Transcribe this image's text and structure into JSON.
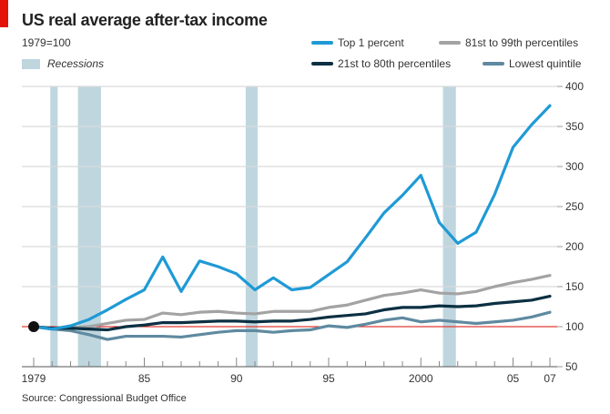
{
  "chart_data": {
    "type": "line",
    "title": "US real average after-tax income",
    "subtitle": "1979=100",
    "source": "Source: Congressional Budget Office",
    "x": [
      1979,
      1980,
      1981,
      1982,
      1983,
      1984,
      1985,
      1986,
      1987,
      1988,
      1989,
      1990,
      1991,
      1992,
      1993,
      1994,
      1995,
      1996,
      1997,
      1998,
      1999,
      2000,
      2001,
      2002,
      2003,
      2004,
      2005,
      2006,
      2007
    ],
    "xlim": [
      1979,
      2007
    ],
    "ylim": [
      50,
      400
    ],
    "x_ticks": [
      {
        "value": 1979,
        "label": "1979"
      },
      {
        "value": 1985,
        "label": "85"
      },
      {
        "value": 1990,
        "label": "90"
      },
      {
        "value": 1995,
        "label": "95"
      },
      {
        "value": 2000,
        "label": "2000"
      },
      {
        "value": 2005,
        "label": "05"
      },
      {
        "value": 2007,
        "label": "07"
      }
    ],
    "y_ticks": [
      50,
      100,
      150,
      200,
      250,
      300,
      350,
      400
    ],
    "y_axis_side": "right",
    "grid": true,
    "baseline": {
      "value": 100,
      "color": "#e3120b"
    },
    "legend_position": "top-right",
    "recessions_label": "Recessions",
    "recessions": [
      [
        1979.9,
        1980.3
      ],
      [
        1981.4,
        1982.65
      ],
      [
        1990.5,
        1991.15
      ],
      [
        2001.2,
        2001.9
      ]
    ],
    "series": [
      {
        "name": "Top 1 percent",
        "color": "#1f9ad6",
        "values": [
          100,
          97,
          101,
          109,
          121,
          134,
          146,
          187,
          144,
          182,
          175,
          166,
          146,
          161,
          146,
          149,
          165,
          181,
          211,
          242,
          264,
          289,
          230,
          204,
          218,
          265,
          324,
          352,
          376
        ]
      },
      {
        "name": "81st to 99th percentiles",
        "color": "#a3a3a3",
        "values": [
          100,
          98,
          99,
          100,
          104,
          108,
          109,
          117,
          115,
          118,
          119,
          117,
          116,
          119,
          119,
          119,
          124,
          127,
          133,
          139,
          142,
          146,
          142,
          141,
          144,
          150,
          155,
          159,
          164
        ]
      },
      {
        "name": "21st to 80th percentiles",
        "color": "#0c3042",
        "values": [
          100,
          98,
          98,
          97,
          96,
          100,
          102,
          105,
          105,
          106,
          107,
          107,
          106,
          107,
          107,
          109,
          112,
          114,
          116,
          121,
          124,
          124,
          126,
          125,
          126,
          129,
          131,
          133,
          138
        ]
      },
      {
        "name": "Lowest quintile",
        "color": "#5f8aa0",
        "values": [
          100,
          97,
          95,
          90,
          84,
          88,
          88,
          88,
          87,
          90,
          93,
          95,
          95,
          93,
          95,
          96,
          101,
          99,
          103,
          108,
          111,
          106,
          108,
          106,
          104,
          106,
          108,
          112,
          118
        ]
      }
    ]
  }
}
